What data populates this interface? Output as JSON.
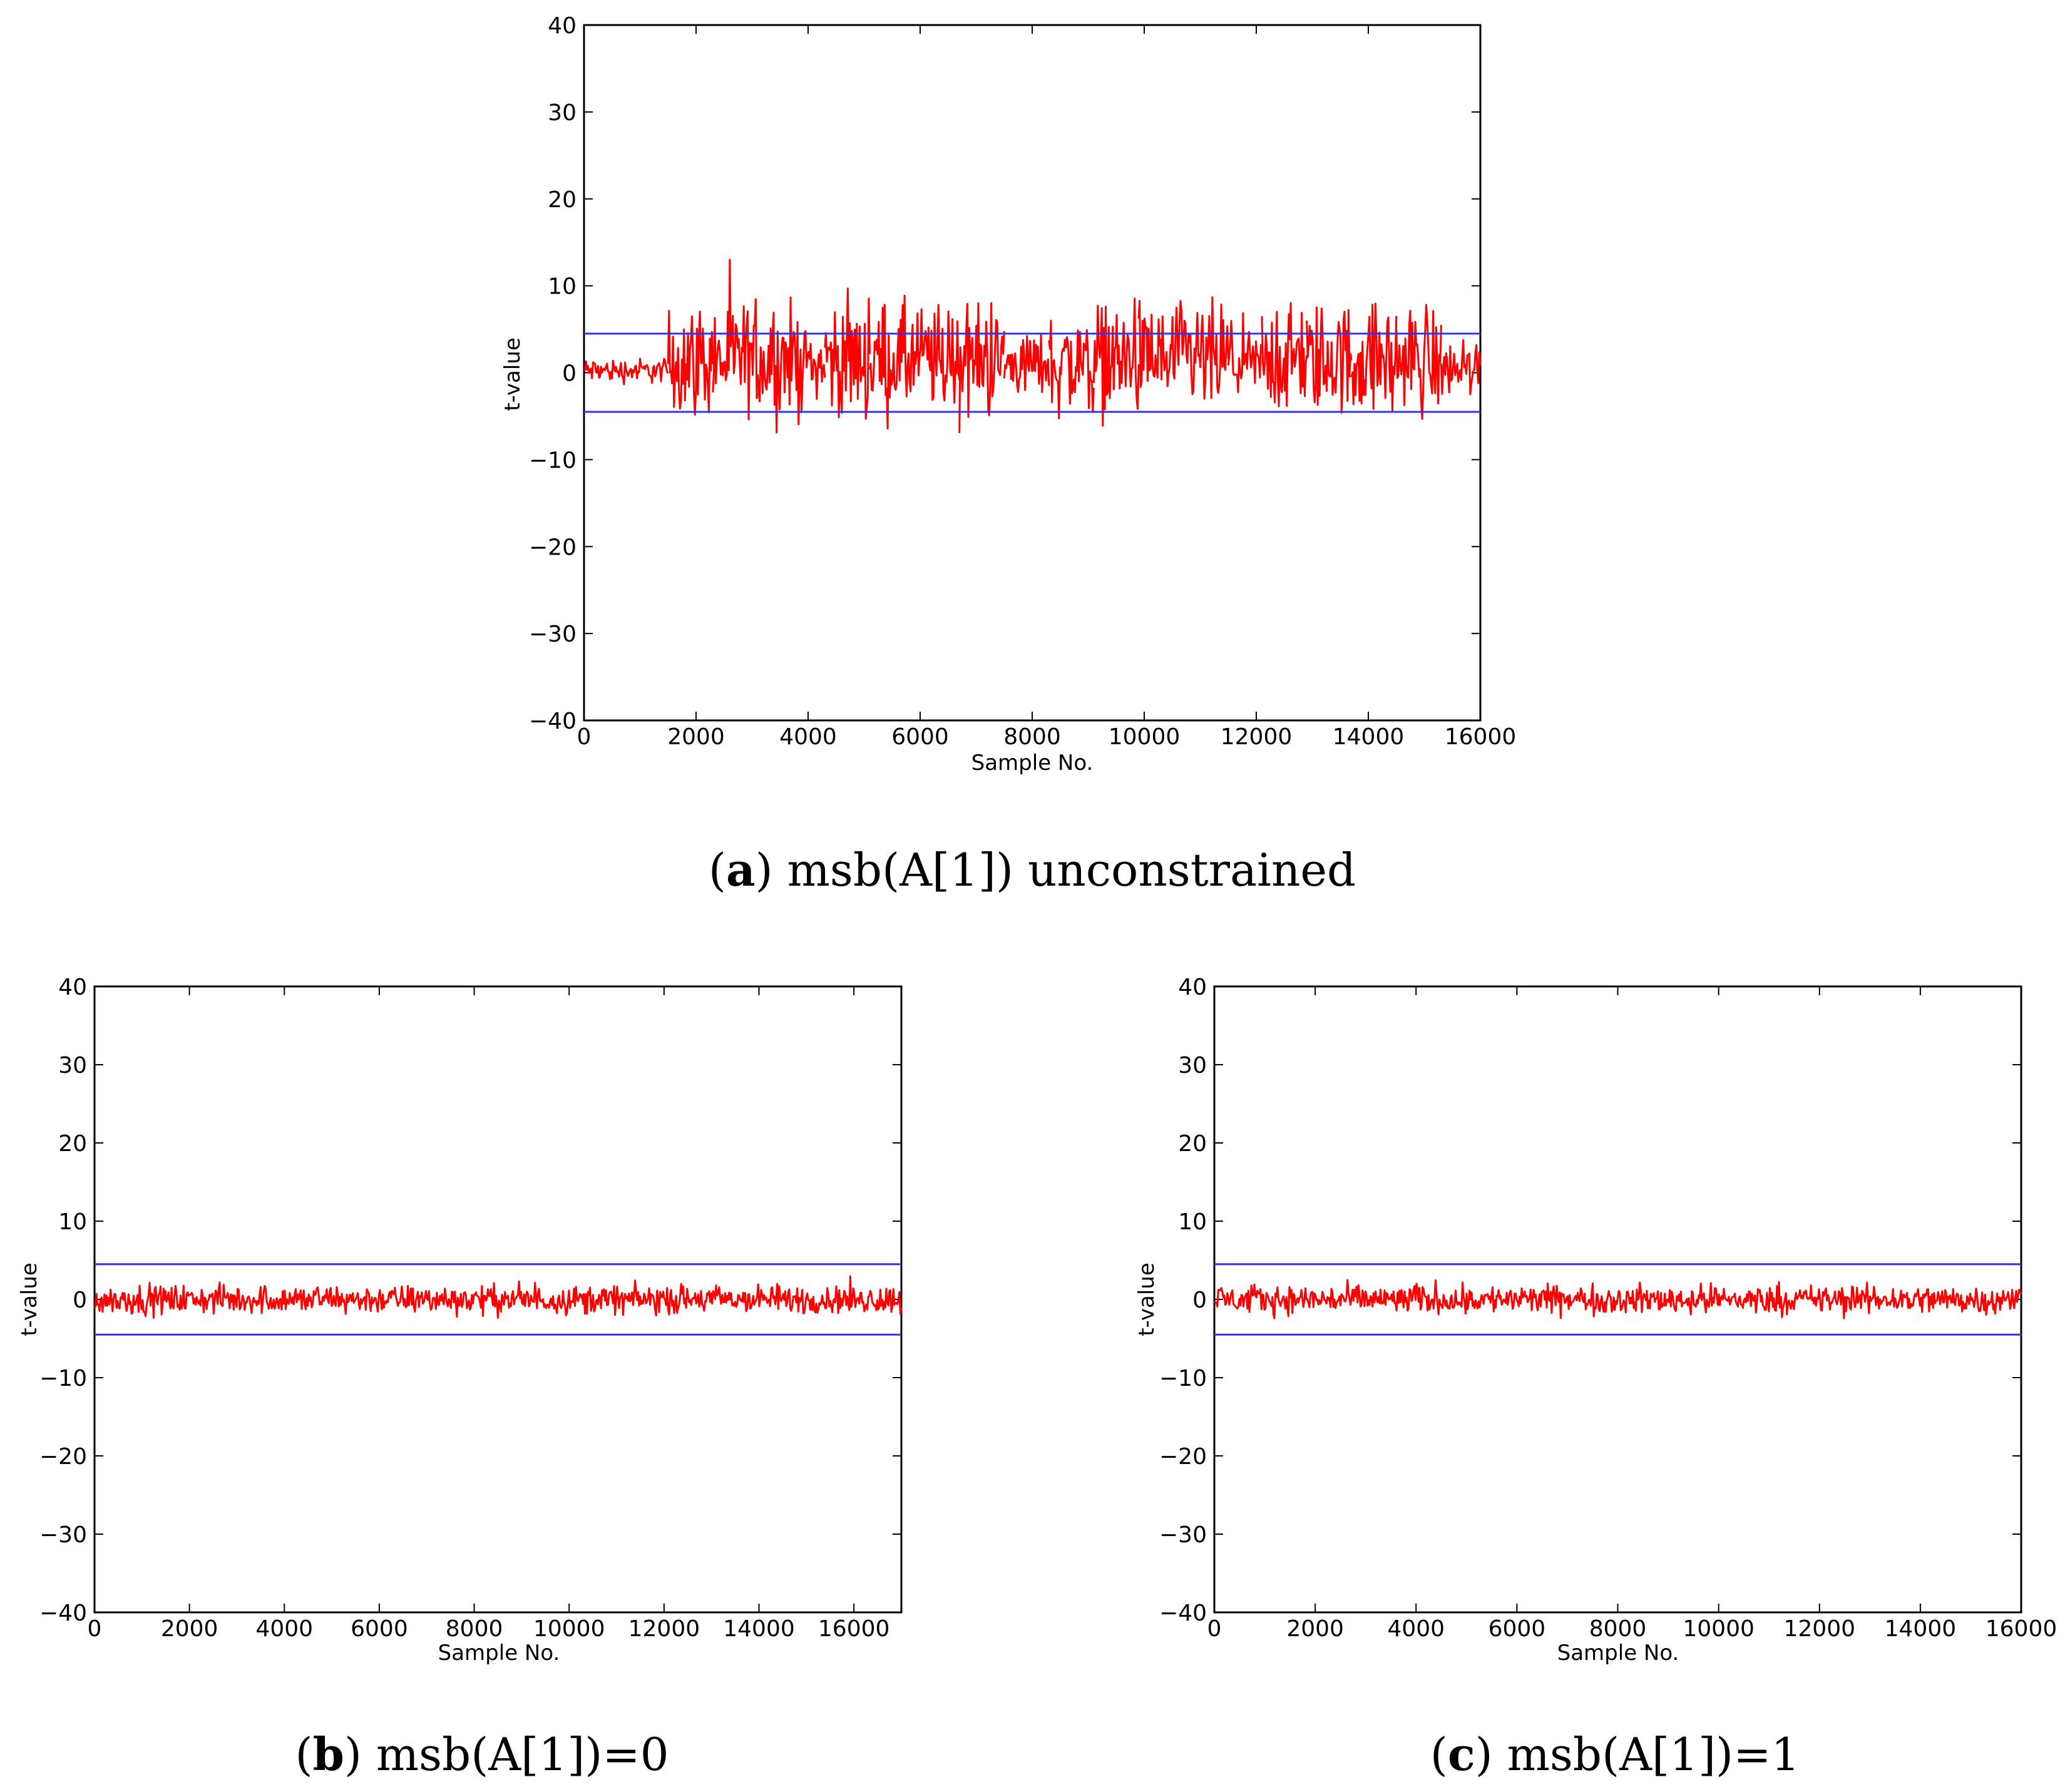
{
  "colors": {
    "signal": "#ff0000",
    "threshold": "#3333ee",
    "frame": "#000000"
  },
  "chart_data": [
    {
      "type": "line",
      "panel_letter": "a",
      "caption_text": "msb(A[1]) unconstrained",
      "xlabel": "Sample No.",
      "ylabel": "t-value",
      "xlim": [
        0,
        16000
      ],
      "ylim": [
        -40,
        40
      ],
      "xticks": [
        0,
        2000,
        4000,
        6000,
        8000,
        10000,
        12000,
        14000,
        16000
      ],
      "yticks": [
        -40,
        -30,
        -20,
        -10,
        0,
        10,
        20,
        30,
        40
      ],
      "thresholds": [
        4.5,
        -4.5
      ],
      "grid": false,
      "series": [
        {
          "color": "#ff0000",
          "envelope": [
            {
              "x_start": 0,
              "x_end": 1500,
              "y_min": -2.5,
              "y_max": 3
            },
            {
              "x_start": 1500,
              "x_end": 2300,
              "y_min": -11,
              "y_max": 14
            },
            {
              "x_start": 2300,
              "x_end": 3100,
              "y_min": -11,
              "y_max": 14
            },
            {
              "x_start": 3100,
              "x_end": 3900,
              "y_min": -11,
              "y_max": 14
            },
            {
              "x_start": 3900,
              "x_end": 4300,
              "y_min": -6,
              "y_max": 8
            },
            {
              "x_start": 4300,
              "x_end": 5100,
              "y_min": -11,
              "y_max": 14
            },
            {
              "x_start": 5100,
              "x_end": 5900,
              "y_min": -11,
              "y_max": 14
            },
            {
              "x_start": 5900,
              "x_end": 6700,
              "y_min": -11,
              "y_max": 14
            },
            {
              "x_start": 6700,
              "x_end": 7500,
              "y_min": -11,
              "y_max": 14
            },
            {
              "x_start": 7500,
              "x_end": 8300,
              "y_min": -6,
              "y_max": 8
            },
            {
              "x_start": 8300,
              "x_end": 9100,
              "y_min": -11,
              "y_max": 13
            },
            {
              "x_start": 9100,
              "x_end": 9900,
              "y_min": -11,
              "y_max": 14
            },
            {
              "x_start": 9900,
              "x_end": 10700,
              "y_min": -11,
              "y_max": 14
            },
            {
              "x_start": 10700,
              "x_end": 11500,
              "y_min": -11,
              "y_max": 14
            },
            {
              "x_start": 11500,
              "x_end": 12100,
              "y_min": -6,
              "y_max": 8
            },
            {
              "x_start": 12100,
              "x_end": 12900,
              "y_min": -11,
              "y_max": 14
            },
            {
              "x_start": 12900,
              "x_end": 13700,
              "y_min": -11,
              "y_max": 14
            },
            {
              "x_start": 13700,
              "x_end": 14500,
              "y_min": -11,
              "y_max": 14
            },
            {
              "x_start": 14500,
              "x_end": 15300,
              "y_min": -11,
              "y_max": 14
            },
            {
              "x_start": 15300,
              "x_end": 16000,
              "y_min": -6,
              "y_max": 7
            }
          ]
        }
      ]
    },
    {
      "type": "line",
      "panel_letter": "b",
      "caption_text": "msb(A[1])=0",
      "xlabel": "Sample No.",
      "ylabel": "t-value",
      "xlim": [
        0,
        17000
      ],
      "ylim": [
        -40,
        40
      ],
      "xticks": [
        0,
        2000,
        4000,
        6000,
        8000,
        10000,
        12000,
        14000,
        16000
      ],
      "yticks": [
        -40,
        -30,
        -20,
        -10,
        0,
        10,
        20,
        30,
        40
      ],
      "thresholds": [
        4.5,
        -4.5
      ],
      "grid": false,
      "series": [
        {
          "color": "#ff0000",
          "envelope": [
            {
              "x_start": 0,
              "x_end": 17000,
              "y_min": -3.5,
              "y_max": 3.5
            }
          ]
        }
      ]
    },
    {
      "type": "line",
      "panel_letter": "c",
      "caption_text": "msb(A[1])=1",
      "xlabel": "Sample No.",
      "ylabel": "t-value",
      "xlim": [
        0,
        16000
      ],
      "ylim": [
        -40,
        40
      ],
      "xticks": [
        0,
        2000,
        4000,
        6000,
        8000,
        10000,
        12000,
        14000,
        16000
      ],
      "yticks": [
        -40,
        -30,
        -20,
        -10,
        0,
        10,
        20,
        30,
        40
      ],
      "thresholds": [
        4.5,
        -4.5
      ],
      "grid": false,
      "series": [
        {
          "color": "#ff0000",
          "envelope": [
            {
              "x_start": 0,
              "x_end": 16000,
              "y_min": -3.5,
              "y_max": 3.5
            }
          ]
        }
      ]
    }
  ]
}
